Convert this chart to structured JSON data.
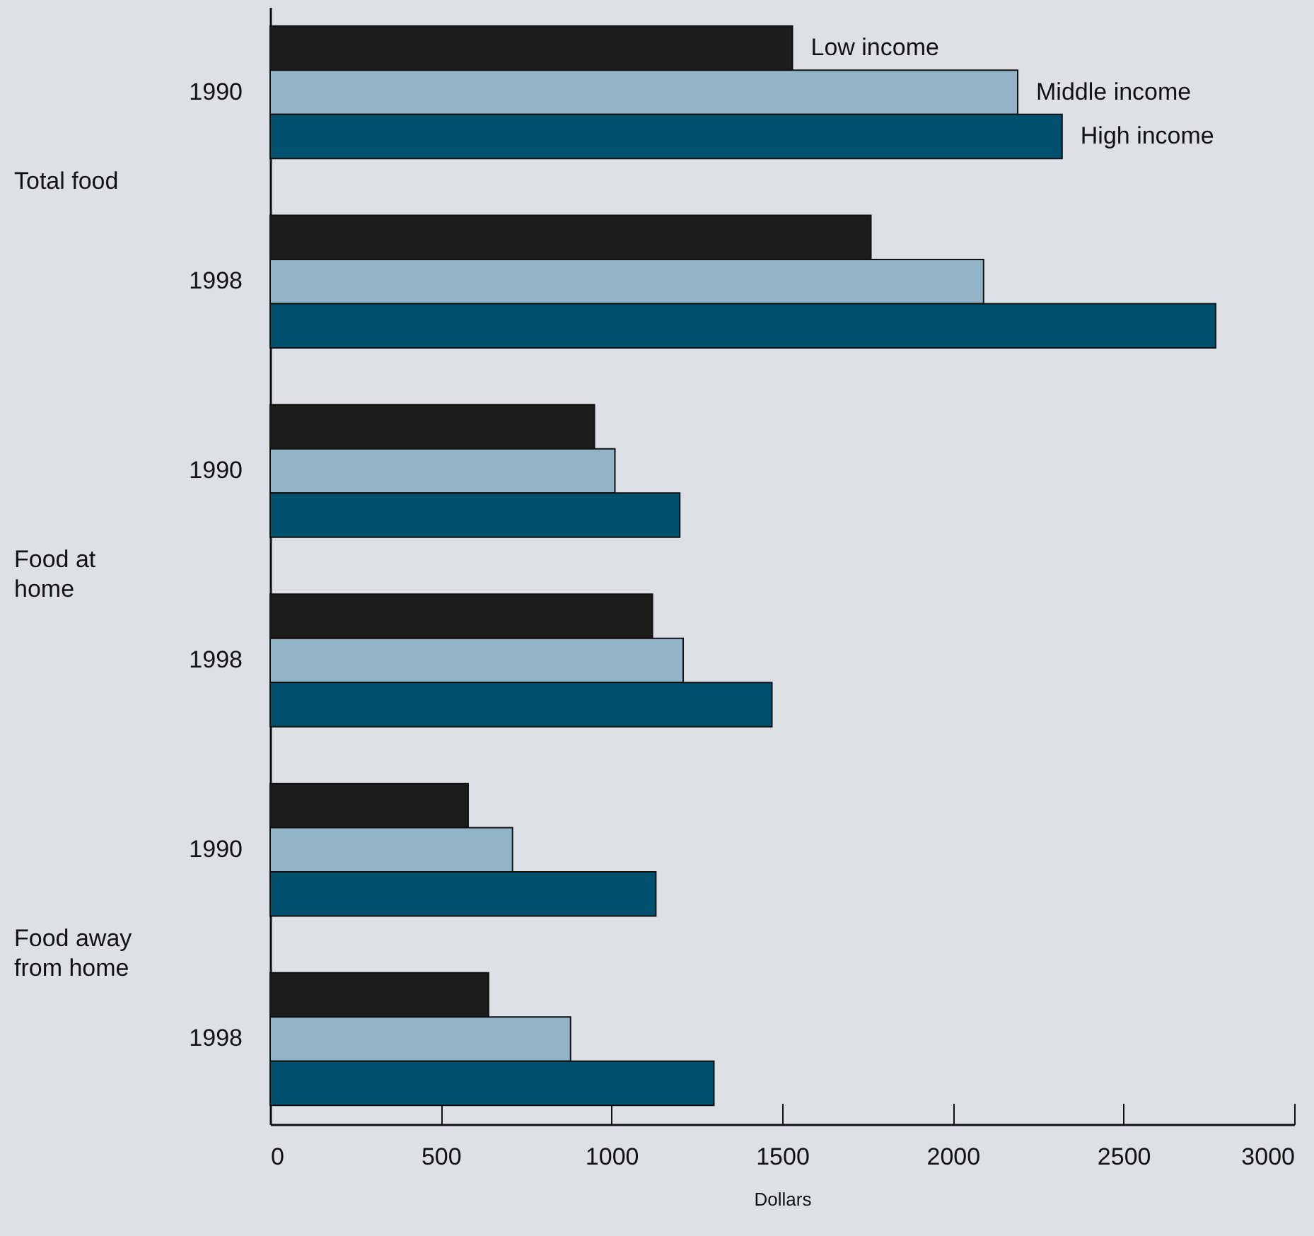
{
  "chart_data": {
    "type": "bar",
    "orientation": "horizontal",
    "xlabel": "Dollars",
    "categories": [
      "1990",
      "1998",
      "1990",
      "1998",
      "1990",
      "1998"
    ],
    "series": [
      {
        "name": "Low income",
        "color": "#1c1c1c",
        "values": [
          1530,
          1760,
          950,
          1120,
          580,
          640
        ]
      },
      {
        "name": "Middle income",
        "color": "#93b3c6",
        "values": [
          2190,
          2090,
          1010,
          1210,
          710,
          880
        ]
      },
      {
        "name": "High income",
        "color": "#00506e",
        "values": [
          2320,
          2770,
          1200,
          1470,
          1130,
          1300
        ]
      }
    ],
    "annotations": [
      "Total food",
      "Food at home",
      "Food away from home"
    ],
    "xlim": [
      0,
      3000
    ],
    "xticks": [
      0,
      500,
      1000,
      1500,
      2000,
      2500,
      3000
    ],
    "grid": false
  }
}
